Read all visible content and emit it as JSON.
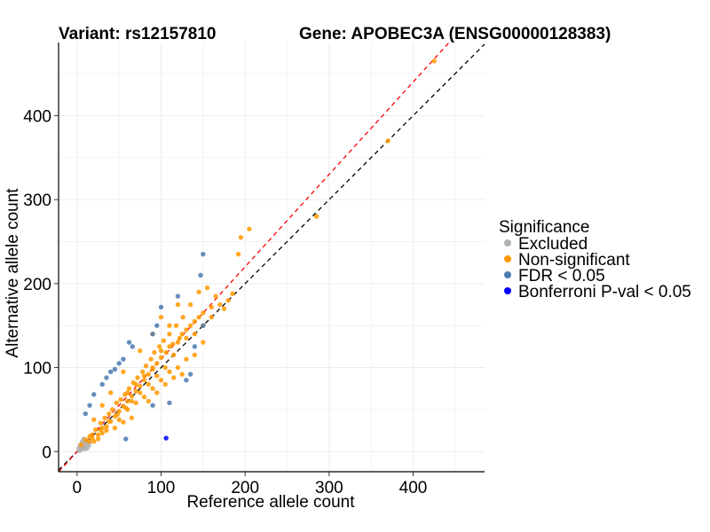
{
  "chart_data": {
    "type": "scatter",
    "title_left": "Variant: rs12157810",
    "title_right": "Gene: APOBEC3A (ENSG00000128383)",
    "xlabel": "Reference allele count",
    "ylabel": "Alternative allele count",
    "xlim": [
      -22,
      485
    ],
    "ylim": [
      -24,
      487
    ],
    "x_ticks": [
      0,
      100,
      200,
      300,
      400
    ],
    "y_ticks": [
      0,
      100,
      200,
      300,
      400
    ],
    "grid": true,
    "reference_lines": [
      {
        "name": "identity",
        "color": "#000000",
        "slope": 1.0,
        "intercept": 0
      },
      {
        "name": "fitted",
        "color": "#ff0000",
        "slope": 1.1,
        "intercept": 0
      }
    ],
    "legend": {
      "title": "Significance",
      "position": "right",
      "entries": [
        {
          "label": "Excluded",
          "color": "#b3b3b3"
        },
        {
          "label": "Non-significant",
          "color": "#ff9900"
        },
        {
          "label": "FDR < 0.05",
          "color": "#4a7ab0"
        },
        {
          "label": "Bonferroni P-val < 0.05",
          "color": "#0000ff"
        }
      ]
    },
    "series": [
      {
        "name": "Excluded",
        "color": "#b3b3b3",
        "points": [
          [
            2,
            3
          ],
          [
            3,
            5
          ],
          [
            4,
            2
          ],
          [
            5,
            7
          ],
          [
            6,
            4
          ],
          [
            7,
            9
          ],
          [
            8,
            6
          ],
          [
            9,
            11
          ],
          [
            10,
            5
          ],
          [
            11,
            8
          ],
          [
            12,
            13
          ],
          [
            13,
            10
          ],
          [
            14,
            7
          ],
          [
            6,
            12
          ],
          [
            8,
            15
          ],
          [
            4,
            8
          ],
          [
            3,
            1
          ],
          [
            9,
            3
          ],
          [
            12,
            4
          ],
          [
            15,
            11
          ]
        ]
      },
      {
        "name": "Non-significant",
        "color": "#ff9900",
        "points": [
          [
            5,
            8
          ],
          [
            10,
            14
          ],
          [
            14,
            12
          ],
          [
            18,
            20
          ],
          [
            22,
            26
          ],
          [
            25,
            20
          ],
          [
            28,
            34
          ],
          [
            30,
            28
          ],
          [
            33,
            40
          ],
          [
            35,
            30
          ],
          [
            38,
            45
          ],
          [
            40,
            36
          ],
          [
            42,
            50
          ],
          [
            45,
            42
          ],
          [
            47,
            58
          ],
          [
            50,
            48
          ],
          [
            52,
            62
          ],
          [
            55,
            54
          ],
          [
            57,
            68
          ],
          [
            60,
            60
          ],
          [
            62,
            75
          ],
          [
            65,
            66
          ],
          [
            67,
            82
          ],
          [
            70,
            72
          ],
          [
            72,
            88
          ],
          [
            75,
            78
          ],
          [
            78,
            95
          ],
          [
            80,
            85
          ],
          [
            82,
            102
          ],
          [
            85,
            92
          ],
          [
            88,
            110
          ],
          [
            90,
            98
          ],
          [
            92,
            118
          ],
          [
            95,
            105
          ],
          [
            98,
            125
          ],
          [
            100,
            112
          ],
          [
            103,
            132
          ],
          [
            106,
            118
          ],
          [
            110,
            140
          ],
          [
            114,
            128
          ],
          [
            118,
            150
          ],
          [
            122,
            135
          ],
          [
            126,
            160
          ],
          [
            130,
            145
          ],
          [
            135,
            175
          ],
          [
            140,
            155
          ],
          [
            145,
            190
          ],
          [
            150,
            165
          ],
          [
            155,
            195
          ],
          [
            160,
            172
          ],
          [
            165,
            185
          ],
          [
            175,
            170
          ],
          [
            185,
            188
          ],
          [
            192,
            235
          ],
          [
            195,
            255
          ],
          [
            205,
            265
          ],
          [
            285,
            280
          ],
          [
            370,
            370
          ],
          [
            425,
            465
          ],
          [
            60,
            50
          ],
          [
            70,
            58
          ],
          [
            80,
            65
          ],
          [
            90,
            75
          ],
          [
            100,
            85
          ],
          [
            110,
            95
          ],
          [
            120,
            100
          ],
          [
            130,
            110
          ],
          [
            140,
            115
          ],
          [
            150,
            130
          ],
          [
            120,
            175
          ],
          [
            100,
            160
          ],
          [
            110,
            150
          ],
          [
            90,
            140
          ],
          [
            75,
            120
          ],
          [
            55,
            95
          ],
          [
            40,
            70
          ],
          [
            30,
            55
          ],
          [
            20,
            38
          ],
          [
            65,
            40
          ],
          [
            85,
            60
          ],
          [
            95,
            70
          ],
          [
            105,
            80
          ],
          [
            115,
            88
          ],
          [
            125,
            92
          ],
          [
            45,
            28
          ],
          [
            55,
            35
          ],
          [
            35,
            25
          ],
          [
            25,
            15
          ],
          [
            15,
            18
          ],
          [
            20,
            12
          ],
          [
            30,
            22
          ],
          [
            50,
            38
          ],
          [
            60,
            70
          ],
          [
            70,
            80
          ],
          [
            80,
            90
          ],
          [
            90,
            100
          ],
          [
            100,
            120
          ],
          [
            110,
            125
          ],
          [
            120,
            130
          ],
          [
            130,
            135
          ],
          [
            140,
            140
          ],
          [
            150,
            150
          ],
          [
            160,
            160
          ],
          [
            170,
            175
          ],
          [
            180,
            180
          ],
          [
            145,
            160
          ],
          [
            135,
            150
          ],
          [
            125,
            140
          ],
          [
            115,
            115
          ],
          [
            105,
            100
          ],
          [
            95,
            90
          ],
          [
            85,
            80
          ],
          [
            75,
            70
          ],
          [
            65,
            60
          ],
          [
            58,
            52
          ],
          [
            48,
            44
          ],
          [
            38,
            36
          ],
          [
            28,
            26
          ],
          [
            18,
            16
          ]
        ]
      },
      {
        "name": "FDR < 0.05",
        "color": "#4a7ab0",
        "points": [
          [
            150,
            235
          ],
          [
            147,
            210
          ],
          [
            120,
            185
          ],
          [
            100,
            172
          ],
          [
            62,
            130
          ],
          [
            66,
            125
          ],
          [
            55,
            110
          ],
          [
            50,
            105
          ],
          [
            45,
            98
          ],
          [
            40,
            95
          ],
          [
            35,
            88
          ],
          [
            30,
            80
          ],
          [
            20,
            68
          ],
          [
            15,
            55
          ],
          [
            10,
            45
          ],
          [
            90,
            140
          ],
          [
            95,
            150
          ],
          [
            58,
            15
          ],
          [
            90,
            55
          ],
          [
            110,
            58
          ],
          [
            130,
            85
          ],
          [
            135,
            92
          ],
          [
            140,
            125
          ],
          [
            150,
            150
          ]
        ]
      },
      {
        "name": "Bonferroni P-val < 0.05",
        "color": "#0000ff",
        "points": [
          [
            106,
            16
          ]
        ]
      }
    ]
  }
}
